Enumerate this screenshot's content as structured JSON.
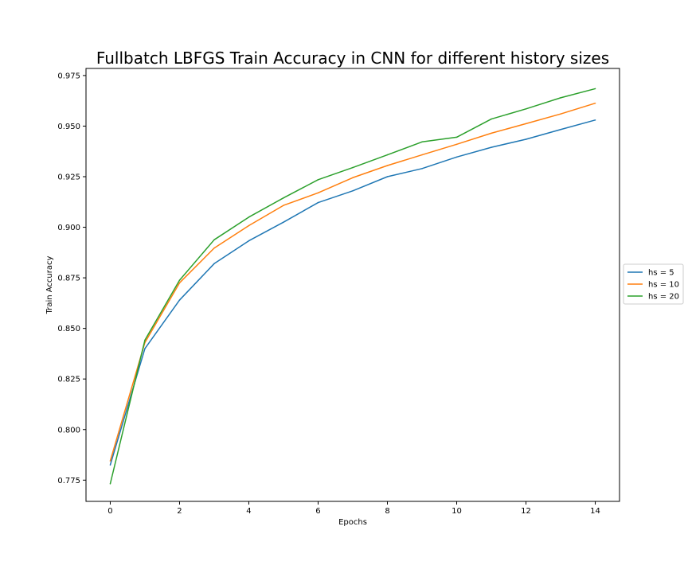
{
  "chart_data": {
    "type": "line",
    "title": "Fullbatch LBFGS Train Accuracy in CNN for different history sizes",
    "xlabel": "Epochs",
    "ylabel": "Train Accuracy",
    "xlim": [
      -0.7,
      14.7
    ],
    "ylim": [
      0.7645,
      0.9785
    ],
    "xticks": [
      0,
      2,
      4,
      6,
      8,
      10,
      12,
      14
    ],
    "xtick_labels": [
      "0",
      "2",
      "4",
      "6",
      "8",
      "10",
      "12",
      "14"
    ],
    "yticks": [
      0.775,
      0.8,
      0.825,
      0.85,
      0.875,
      0.9,
      0.925,
      0.95,
      0.975
    ],
    "ytick_labels": [
      "0.775",
      "0.800",
      "0.825",
      "0.850",
      "0.875",
      "0.900",
      "0.925",
      "0.950",
      "0.975"
    ],
    "grid": false,
    "legend_position": "outside-right",
    "x": [
      0,
      1,
      2,
      3,
      4,
      5,
      6,
      7,
      8,
      9,
      10,
      11,
      12,
      13,
      14
    ],
    "series": [
      {
        "name": "hs = 5",
        "color": "#1f77b4",
        "values": [
          0.7825,
          0.84,
          0.864,
          0.882,
          0.8933,
          0.9025,
          0.9122,
          0.918,
          0.925,
          0.929,
          0.9347,
          0.9395,
          0.9435,
          0.9483,
          0.953
        ]
      },
      {
        "name": "hs = 10",
        "color": "#ff7f0e",
        "values": [
          0.7845,
          0.843,
          0.8725,
          0.8897,
          0.9008,
          0.9108,
          0.917,
          0.9245,
          0.9305,
          0.9358,
          0.941,
          0.9465,
          0.9512,
          0.956,
          0.9613
        ]
      },
      {
        "name": "hs = 20",
        "color": "#2ca02c",
        "values": [
          0.7732,
          0.8442,
          0.8738,
          0.8938,
          0.905,
          0.9145,
          0.9235,
          0.9295,
          0.9358,
          0.9422,
          0.9445,
          0.9535,
          0.9585,
          0.964,
          0.9685
        ]
      }
    ]
  }
}
